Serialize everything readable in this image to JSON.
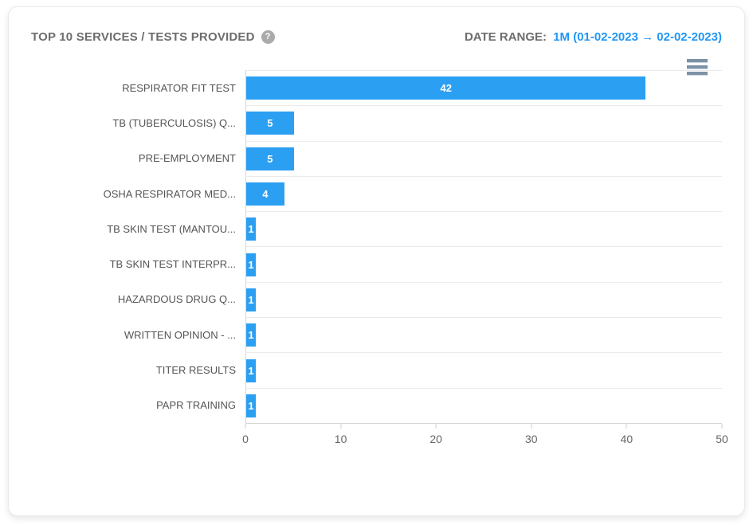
{
  "header": {
    "title": "TOP 10 SERVICES / TESTS PROVIDED",
    "help_icon_glyph": "?",
    "date_range_label": "DATE RANGE:",
    "date_range_value": "1M (01-02-2023 → 02-02-2023)"
  },
  "menu": {
    "icon": "hamburger-menu-icon"
  },
  "colors": {
    "bar": "#2b9ff2",
    "date_range_accent": "#2196f3",
    "title_gray": "#6d6d6d",
    "axis_label_gray": "#666666",
    "gridline": "#ebebeb",
    "burger_icon": "#7d92a4",
    "help_badge": "#ababab",
    "value_label": "#ffffff"
  },
  "chart_data": {
    "type": "bar",
    "orientation": "horizontal",
    "title": "TOP 10 SERVICES / TESTS PROVIDED",
    "categories": [
      "RESPIRATOR FIT TEST",
      "TB (TUBERCULOSIS) Q...",
      "PRE-EMPLOYMENT",
      "OSHA RESPIRATOR MED...",
      "TB SKIN TEST (MANTOU...",
      "TB SKIN TEST INTERPR...",
      "HAZARDOUS DRUG Q...",
      "WRITTEN OPINION - ...",
      "TITER RESULTS",
      "PAPR TRAINING"
    ],
    "values": [
      42,
      5,
      5,
      4,
      1,
      1,
      1,
      1,
      1,
      1
    ],
    "xlabel": "",
    "ylabel": "",
    "xlim": [
      0,
      50
    ],
    "xticks": [
      0,
      10,
      20,
      30,
      40,
      50
    ],
    "grid": "category separator lines only, no vertical gridlines",
    "legend": "none",
    "data_labels": "inside bars, white bold"
  }
}
